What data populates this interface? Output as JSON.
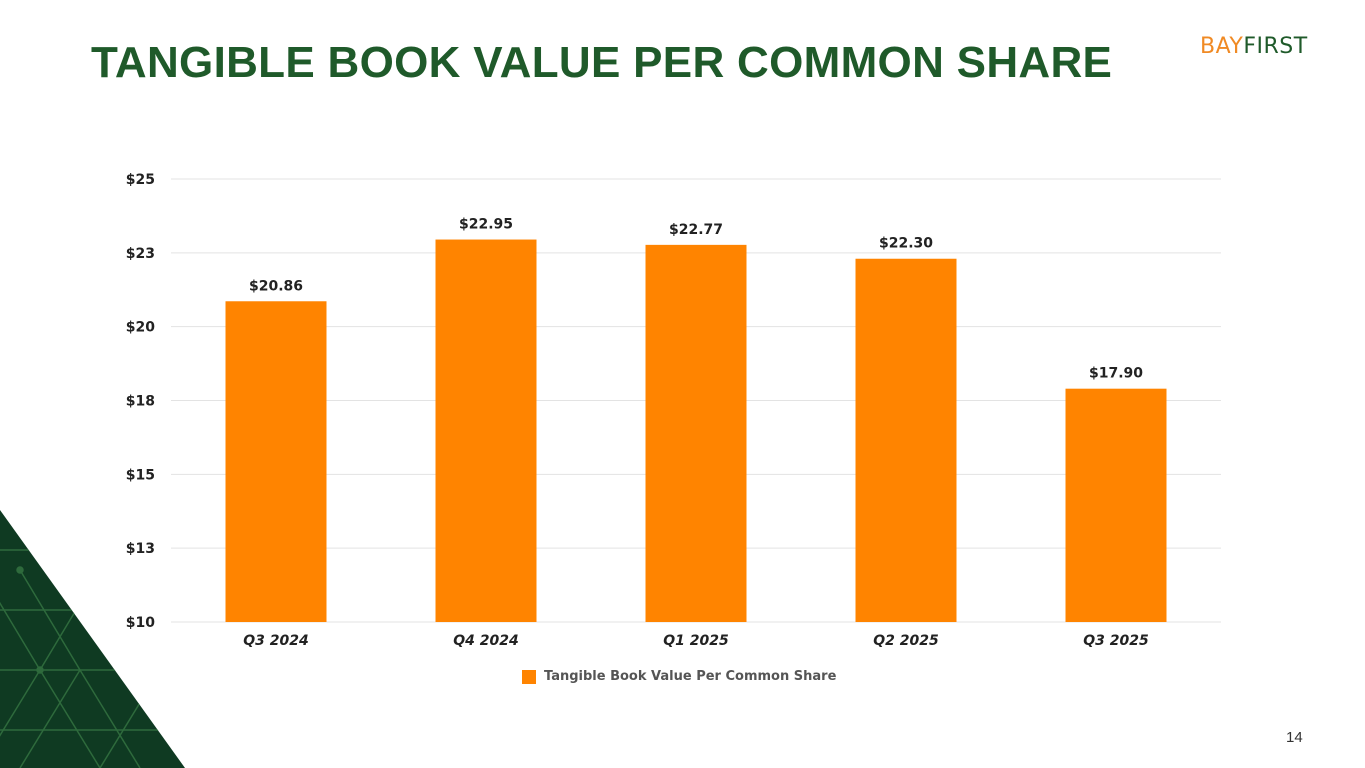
{
  "slide": {
    "title": "TANGIBLE BOOK VALUE PER COMMON SHARE",
    "logo_part1": "BAY",
    "logo_part2": "FIRST",
    "page_number": "14"
  },
  "colors": {
    "title_green": "#1f5a2a",
    "bar_orange": "#ff8400",
    "logo_orange": "#f08a24",
    "dark_green": "#0f3a22"
  },
  "chart_data": {
    "type": "bar",
    "title": "",
    "xlabel": "",
    "ylabel": "",
    "categories": [
      "Q3 2024",
      "Q4 2024",
      "Q1 2025",
      "Q2 2025",
      "Q3 2025"
    ],
    "series": [
      {
        "name": "Tangible Book Value Per Common Share",
        "values": [
          20.86,
          22.95,
          22.77,
          22.3,
          17.9
        ],
        "labels": [
          "$20.86",
          "$22.95",
          "$22.77",
          "$22.30",
          "$17.90"
        ]
      }
    ],
    "ylim": [
      10,
      25
    ],
    "yticks": [
      10,
      12.5,
      15,
      17.5,
      20,
      22.5,
      25
    ],
    "ytick_labels": [
      "$10",
      "$13",
      "$15",
      "$18",
      "$20",
      "$23",
      "$25"
    ],
    "grid": true,
    "legend": "bottom"
  }
}
